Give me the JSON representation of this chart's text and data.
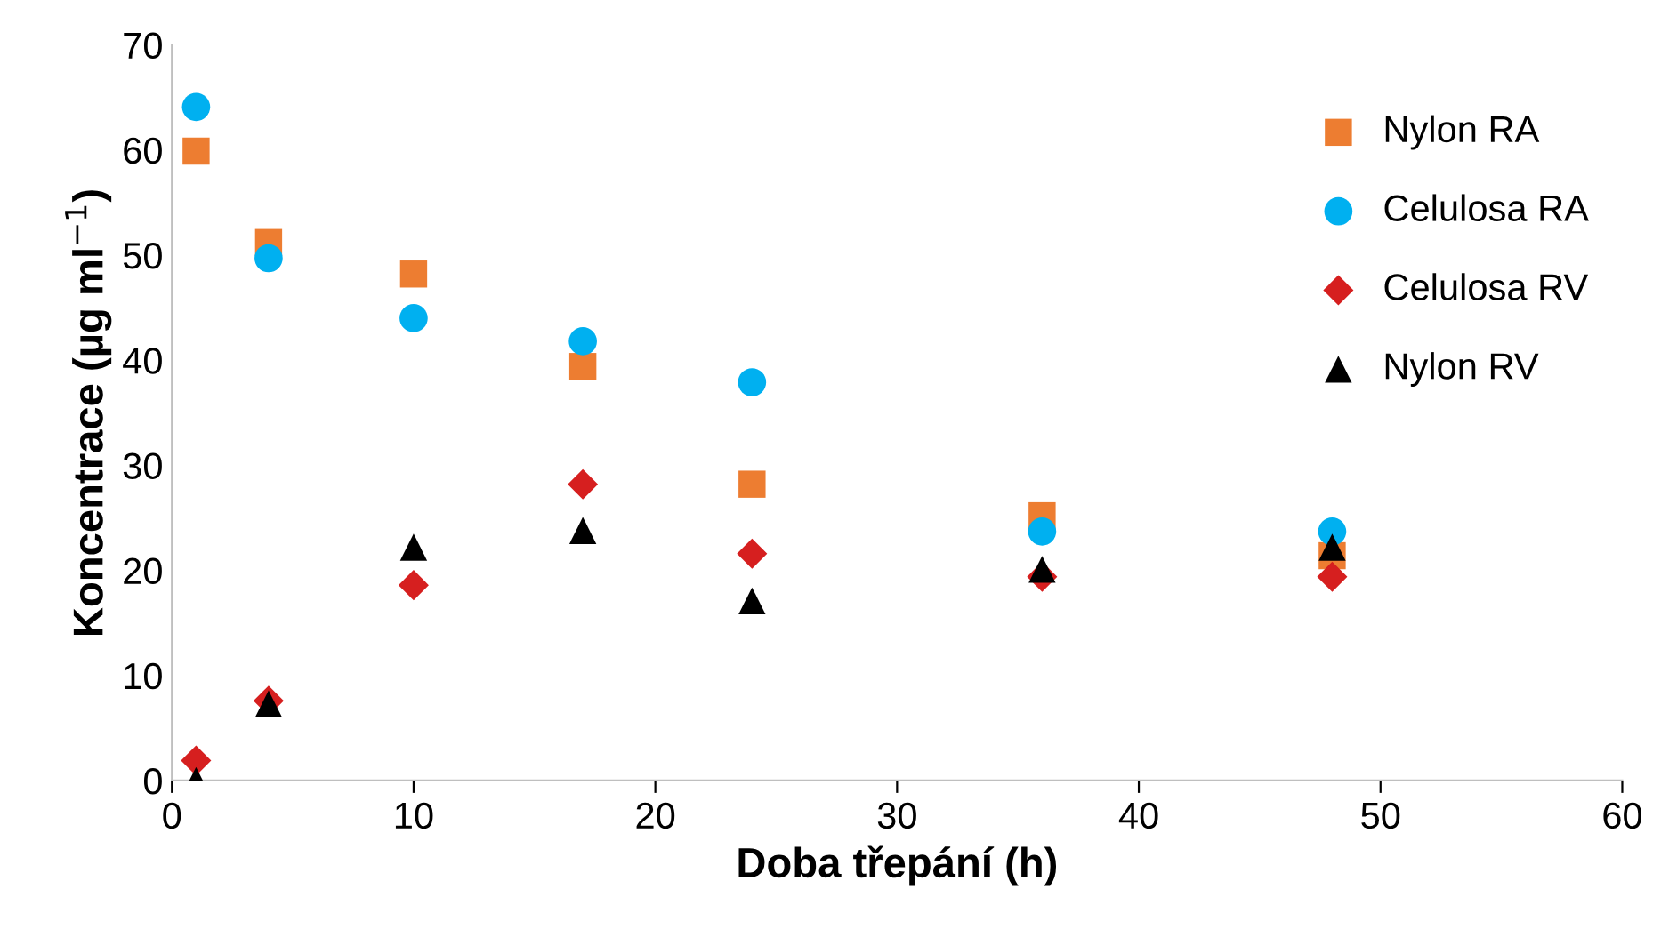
{
  "chart_data": {
    "type": "scatter",
    "xlabel": "Doba třepání (h)",
    "ylabel": "Koncentrace (µg ml$^{−1}$)",
    "x": [
      1,
      4,
      10,
      17,
      24,
      36,
      48
    ],
    "series": [
      {
        "name": "Nylon RA",
        "color": "#ed7d31",
        "marker": "square",
        "values": [
          59.9,
          51.2,
          48.2,
          39.4,
          28.2,
          25.2,
          21.4
        ]
      },
      {
        "name": "Celulosa RA",
        "color": "#00b0f0",
        "marker": "circle",
        "values": [
          64.1,
          49.7,
          44.0,
          41.8,
          37.9,
          23.7,
          23.7
        ]
      },
      {
        "name": "Celulosa RV",
        "color": "#d61f1f",
        "marker": "diamond",
        "values": [
          1.9,
          7.6,
          18.6,
          28.2,
          21.6,
          19.4,
          19.4
        ]
      },
      {
        "name": "Nylon RV",
        "color": "#000000",
        "marker": "triangle",
        "values": [
          0,
          7.3,
          22.2,
          23.8,
          17.1,
          20.1,
          22.2
        ]
      }
    ],
    "xlim": [
      0,
      60
    ],
    "xticks": [
      0,
      10,
      20,
      30,
      40,
      50,
      60
    ],
    "ylim": [
      0,
      70
    ],
    "yticks": [
      0,
      10,
      20,
      30,
      40,
      50,
      60,
      70
    ],
    "grid": false,
    "legend": "right"
  }
}
